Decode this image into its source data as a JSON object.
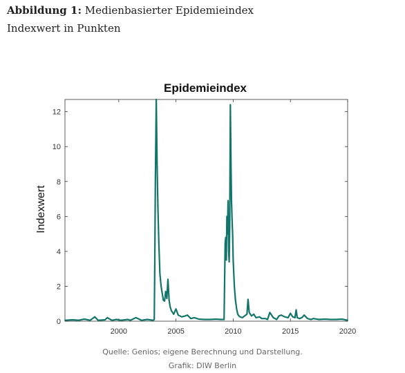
{
  "caption": {
    "label": "Abbildung 1:",
    "title": "Medienbasierter Epidemieindex",
    "subtitle": "Indexwert in Punkten"
  },
  "chart_data": {
    "type": "line",
    "title": "Epidemieindex",
    "xlabel": "",
    "ylabel": "Indexwert",
    "xlim": [
      1995.3,
      2020
    ],
    "ylim": [
      0,
      12.7
    ],
    "x_ticks": [
      2000,
      2005,
      2010,
      2015,
      2020
    ],
    "y_ticks": [
      0,
      2,
      4,
      6,
      8,
      10,
      12
    ],
    "grid": false,
    "color": "#11756a",
    "series": [
      {
        "x": [
          1995.3,
          1996.0,
          1996.5,
          1997.0,
          1997.5,
          1997.9,
          1998.2,
          1998.8,
          1999.0,
          1999.4,
          1999.8,
          2000.2,
          2000.8,
          2001.0,
          2001.5,
          2002.0,
          2002.5,
          2003.0,
          2003.1,
          2003.15,
          2003.2,
          2003.28,
          2003.35,
          2003.42,
          2003.5,
          2003.6,
          2003.7,
          2003.8,
          2003.9,
          2004.0,
          2004.1,
          2004.2,
          2004.3,
          2004.4,
          2004.5,
          2004.6,
          2004.8,
          2005.0,
          2005.2,
          2005.5,
          2005.8,
          2006.0,
          2006.3,
          2006.6,
          2007.0,
          2007.5,
          2008.0,
          2008.5,
          2008.9,
          2009.2,
          2009.3,
          2009.35,
          2009.4,
          2009.45,
          2009.5,
          2009.55,
          2009.6,
          2009.65,
          2009.7,
          2009.75,
          2009.8,
          2009.85,
          2009.9,
          2009.95,
          2010.0,
          2010.1,
          2010.2,
          2010.3,
          2010.4,
          2010.5,
          2010.6,
          2010.8,
          2011.0,
          2011.2,
          2011.3,
          2011.4,
          2011.6,
          2011.8,
          2012.0,
          2012.3,
          2012.5,
          2012.8,
          2013.0,
          2013.2,
          2013.5,
          2013.8,
          2014.0,
          2014.2,
          2014.5,
          2014.8,
          2015.0,
          2015.2,
          2015.4,
          2015.5,
          2015.6,
          2015.8,
          2016.0,
          2016.2,
          2016.5,
          2016.8,
          2017.0,
          2017.5,
          2018.0,
          2018.5,
          2019.0,
          2019.5,
          2020.0
        ],
        "y": [
          0.05,
          0.08,
          0.05,
          0.12,
          0.05,
          0.25,
          0.05,
          0.08,
          0.2,
          0.05,
          0.1,
          0.05,
          0.1,
          0.05,
          0.2,
          0.05,
          0.1,
          0.05,
          0.1,
          3.5,
          8.0,
          12.7,
          9.0,
          6.5,
          4.5,
          2.7,
          2.0,
          1.6,
          1.2,
          1.15,
          1.7,
          1.3,
          2.4,
          1.2,
          0.8,
          0.6,
          0.4,
          0.7,
          0.35,
          0.25,
          0.3,
          0.35,
          0.15,
          0.2,
          0.12,
          0.1,
          0.1,
          0.12,
          0.1,
          0.1,
          4.5,
          4.8,
          3.5,
          6.0,
          5.0,
          6.9,
          4.0,
          3.4,
          5.5,
          12.4,
          9.5,
          7.0,
          5.8,
          5.0,
          3.5,
          2.0,
          1.2,
          0.7,
          0.4,
          0.3,
          0.25,
          0.2,
          0.3,
          0.4,
          1.25,
          0.5,
          0.3,
          0.4,
          0.2,
          0.25,
          0.15,
          0.15,
          0.1,
          0.5,
          0.2,
          0.1,
          0.3,
          0.35,
          0.25,
          0.2,
          0.45,
          0.25,
          0.2,
          0.65,
          0.2,
          0.15,
          0.2,
          0.35,
          0.15,
          0.1,
          0.15,
          0.1,
          0.12,
          0.1,
          0.1,
          0.12,
          0.05
        ]
      }
    ]
  },
  "footer": {
    "source": "Quelle: Genios; eigene Berechnung und Darstellung.",
    "credit": "Grafik: DIW Berlin"
  }
}
